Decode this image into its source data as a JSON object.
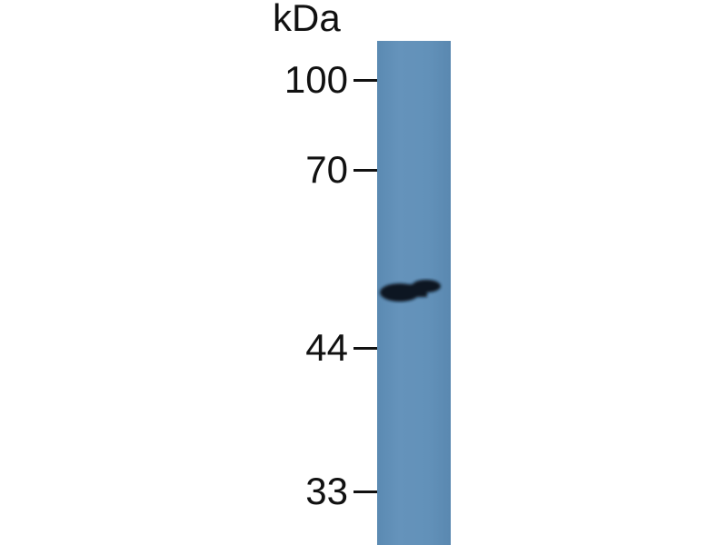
{
  "axis": {
    "unit_label": "kDa"
  },
  "markers": [
    {
      "label": "100",
      "kda": 100
    },
    {
      "label": "70",
      "kda": 70
    },
    {
      "label": "44",
      "kda": 44
    },
    {
      "label": "33",
      "kda": 33
    }
  ],
  "lane": {
    "color": "#6291b9"
  },
  "bands": [
    {
      "approx_kda": 53,
      "color": "#0d1620"
    }
  ]
}
